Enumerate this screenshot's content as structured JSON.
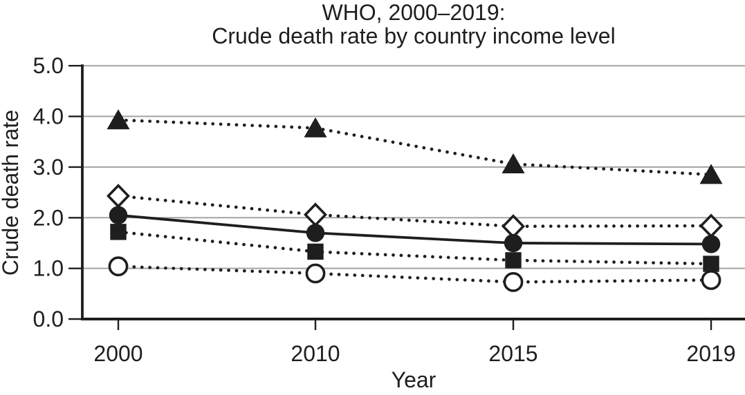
{
  "title": {
    "line1": "WHO, 2000–2019:",
    "line2": "Crude death rate by country income level"
  },
  "chart_data": {
    "type": "line",
    "title": "WHO, 2000–2019: Crude death rate by country income level",
    "categories": [
      "2000",
      "2010",
      "2015",
      "2019"
    ],
    "xlabel": "Year",
    "ylabel": "Crude death rate",
    "ylim": [
      0.0,
      5.0
    ],
    "yticks": [
      "0.0",
      "1.0",
      "2.0",
      "3.0",
      "4.0",
      "5.0"
    ],
    "grid": "horizontal",
    "legend": "none",
    "series": [
      {
        "name": "filled-triangle-dotted",
        "marker": "triangle-filled",
        "line_style": "dotted",
        "values": [
          3.93,
          3.77,
          3.06,
          2.85
        ]
      },
      {
        "name": "open-diamond-dotted",
        "marker": "diamond-open",
        "line_style": "dotted",
        "values": [
          2.43,
          2.06,
          1.83,
          1.84
        ]
      },
      {
        "name": "filled-circle-solid",
        "marker": "circle-filled",
        "line_style": "solid",
        "values": [
          2.05,
          1.7,
          1.5,
          1.48
        ]
      },
      {
        "name": "filled-square-dotted",
        "marker": "square-filled",
        "line_style": "dotted",
        "values": [
          1.72,
          1.33,
          1.16,
          1.09
        ]
      },
      {
        "name": "open-circle-dotted",
        "marker": "circle-open",
        "line_style": "dotted",
        "values": [
          1.04,
          0.9,
          0.73,
          0.77
        ]
      }
    ],
    "colors": {
      "ink": "#1e1e1e",
      "grid": "#a3a3a3",
      "background": "#ffffff"
    }
  }
}
